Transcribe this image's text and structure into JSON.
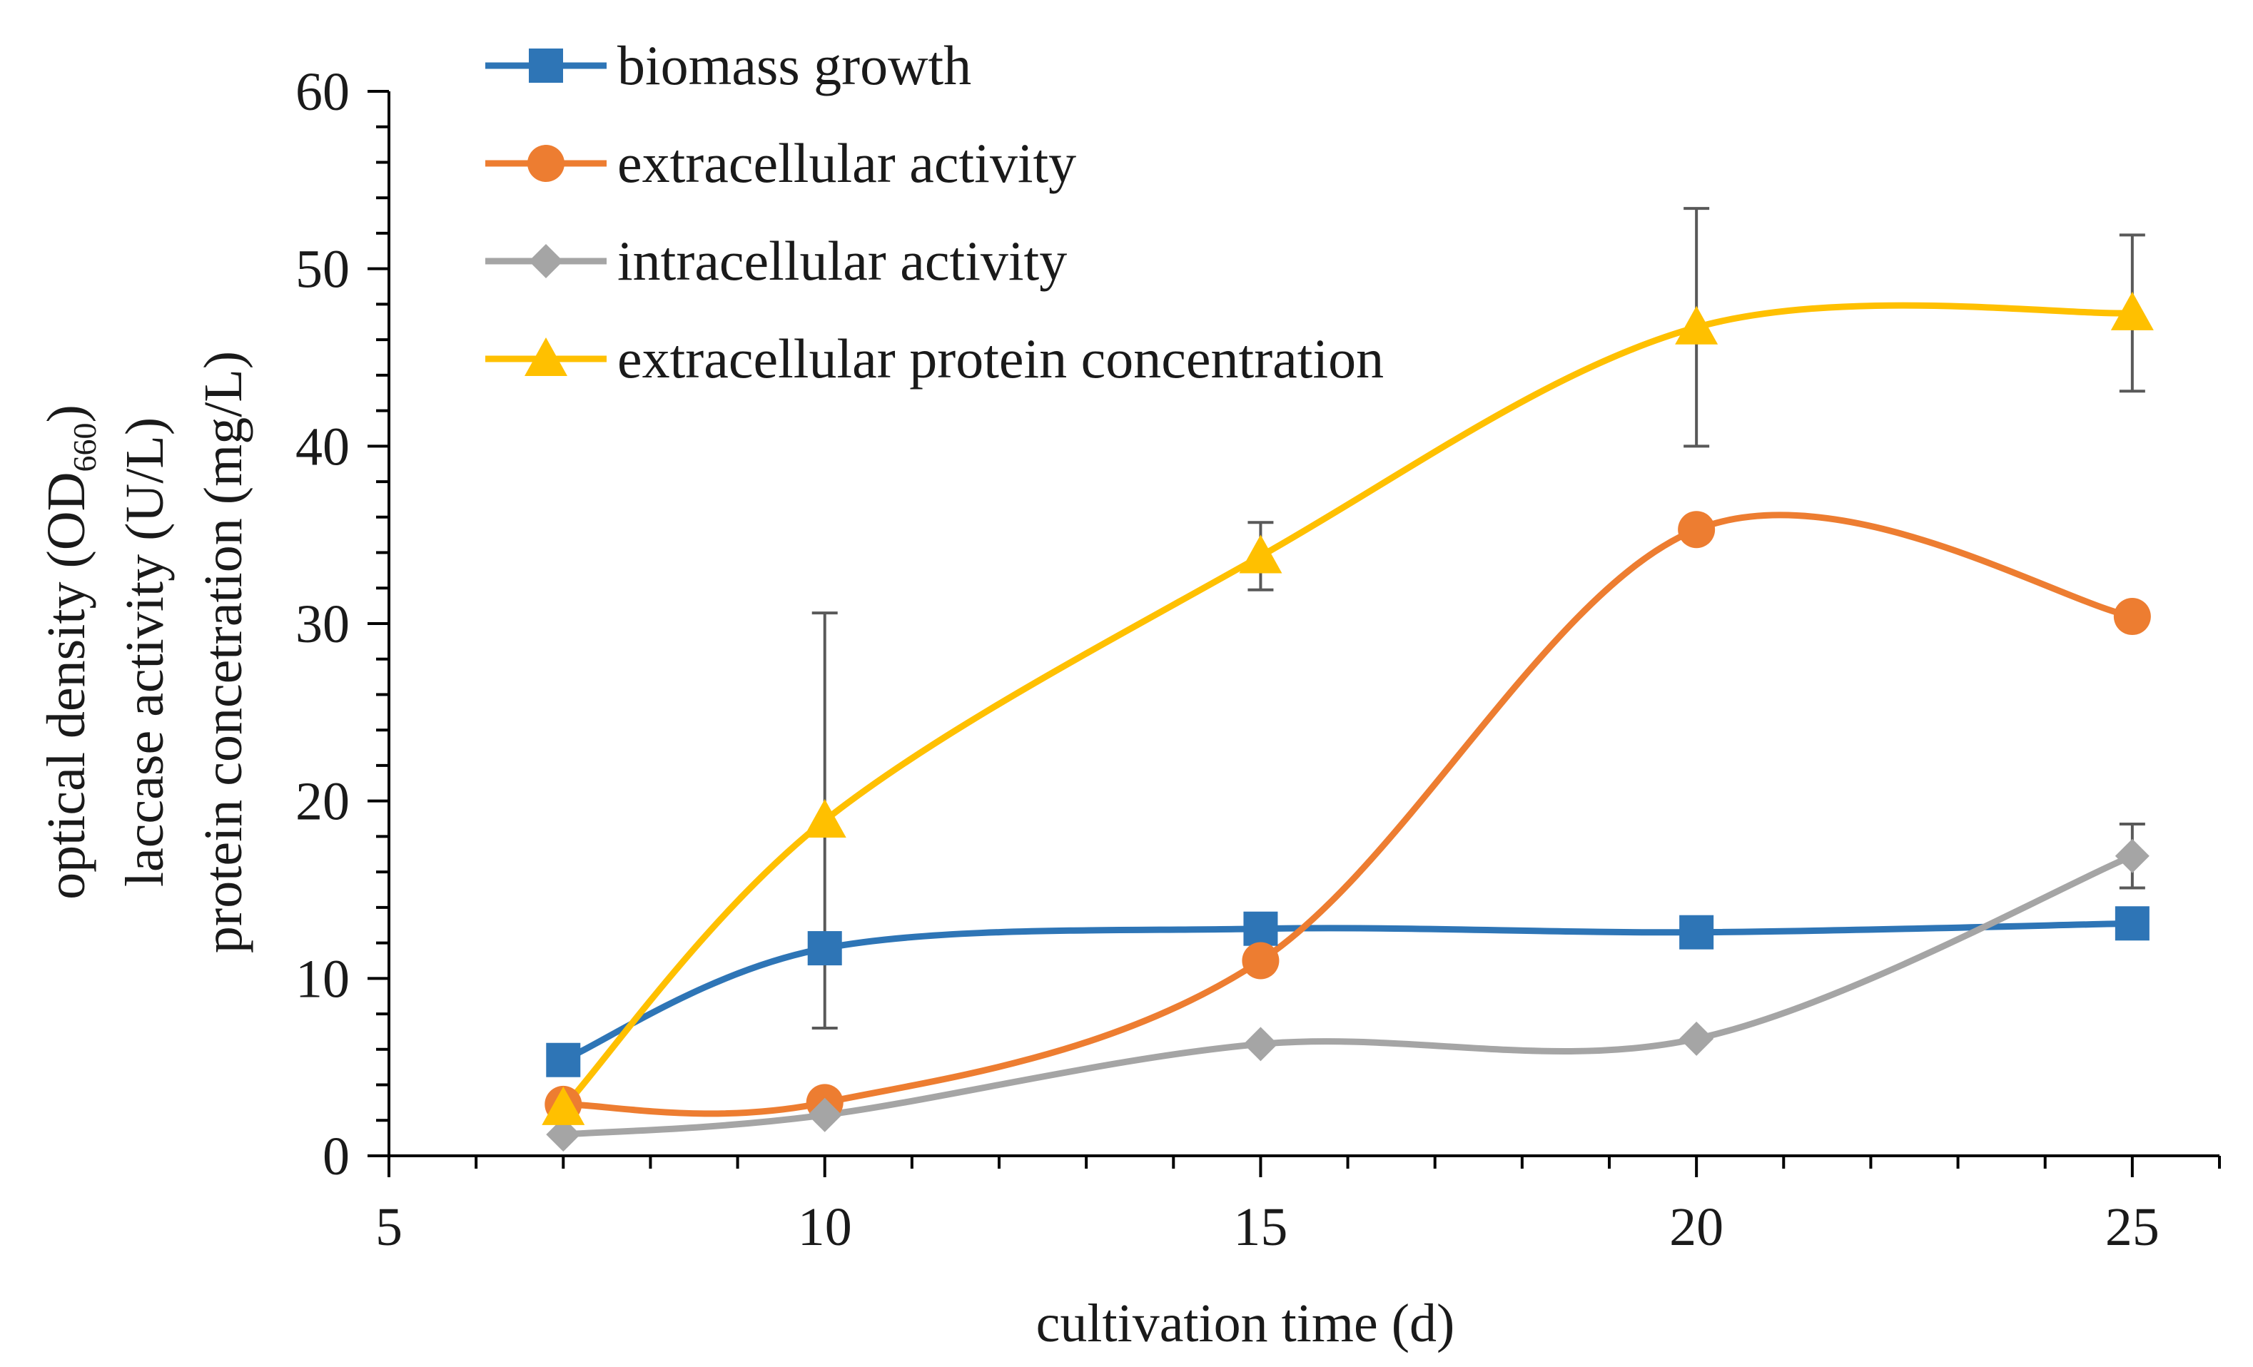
{
  "chart_data": {
    "type": "line",
    "xlabel": "cultivation time (d)",
    "ylabel_lines": [
      {
        "main": "optical density (OD",
        "subscript": "660",
        "tail": ")"
      },
      {
        "main": "laccase activity (U/L)",
        "subscript": "",
        "tail": ""
      },
      {
        "main": "protein concetration (mg/L)",
        "subscript": "",
        "tail": ""
      }
    ],
    "xlim": [
      5,
      26
    ],
    "ylim": [
      0,
      60
    ],
    "x_ticks": [
      5,
      10,
      15,
      20,
      25
    ],
    "y_ticks": [
      0,
      10,
      20,
      30,
      40,
      50,
      60
    ],
    "x_tick_labels": [
      "5",
      "10",
      "15",
      "20",
      "25"
    ],
    "y_tick_labels": [
      "0",
      "10",
      "20",
      "30",
      "40",
      "50",
      "60"
    ],
    "x": [
      7,
      10,
      15,
      20,
      25
    ],
    "series": [
      {
        "name": "biomass growth",
        "color": "#2e75b6",
        "marker": "square",
        "values": [
          5.4,
          11.7,
          12.8,
          12.6,
          13.1
        ],
        "errors": null
      },
      {
        "name": "extracellular activity",
        "color": "#ed7d31",
        "marker": "circle",
        "values": [
          2.9,
          3.0,
          11.0,
          35.3,
          30.4
        ],
        "errors": null
      },
      {
        "name": "intracellular activity",
        "color": "#a5a5a5",
        "marker": "diamond",
        "values": [
          1.2,
          2.3,
          6.3,
          6.6,
          16.9
        ],
        "errors": [
          null,
          null,
          null,
          null,
          1.8
        ]
      },
      {
        "name": "extracellular protein concentration",
        "color": "#ffc000",
        "marker": "triangle",
        "values": [
          2.7,
          18.9,
          33.8,
          46.7,
          47.5
        ],
        "errors": [
          null,
          11.7,
          1.9,
          6.7,
          4.4
        ]
      }
    ],
    "legend_position": "top-left"
  }
}
